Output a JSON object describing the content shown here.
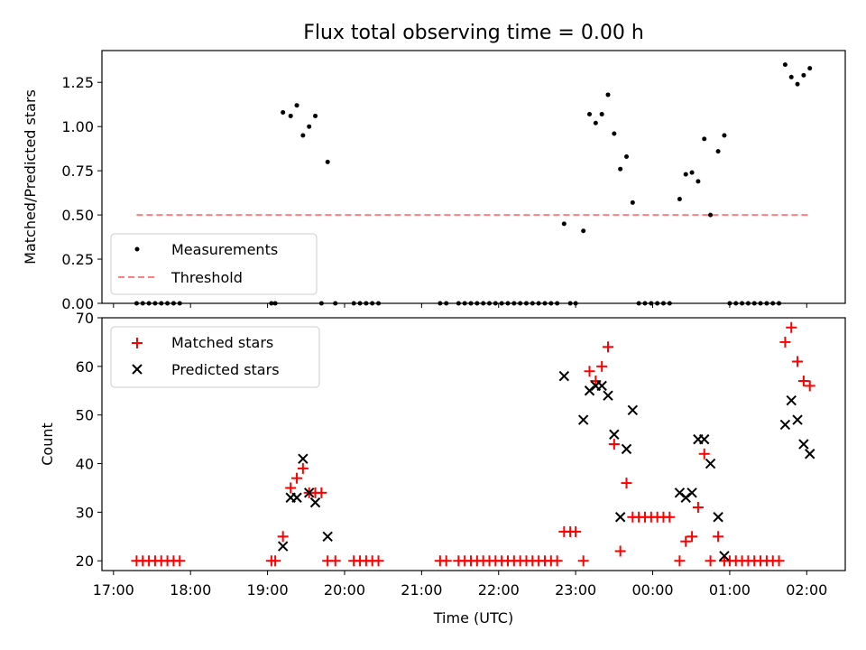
{
  "chart_data": {
    "type": "scatter",
    "title": "Flux total observing time = 0.00 h",
    "xlabel": "Time (UTC)",
    "x_unit": "hours since 17:00 UTC",
    "xlim": [
      -0.15,
      9.5
    ],
    "xticks": [
      {
        "x": 0,
        "label": "17:00"
      },
      {
        "x": 1,
        "label": "18:00"
      },
      {
        "x": 2,
        "label": "19:00"
      },
      {
        "x": 3,
        "label": "20:00"
      },
      {
        "x": 4,
        "label": "21:00"
      },
      {
        "x": 5,
        "label": "22:00"
      },
      {
        "x": 6,
        "label": "23:00"
      },
      {
        "x": 7,
        "label": "00:00"
      },
      {
        "x": 8,
        "label": "01:00"
      },
      {
        "x": 9,
        "label": "02:00"
      }
    ],
    "top": {
      "ylabel": "Matched/Predicted stars",
      "ylim": [
        0,
        1.43
      ],
      "yticks": [
        0,
        0.25,
        0.5,
        0.75,
        1.0,
        1.25
      ],
      "ytick_labels": [
        "0.00",
        "0.25",
        "0.50",
        "0.75",
        "1.00",
        "1.25"
      ],
      "legend": {
        "position": "lower-left",
        "measurements": "Measurements",
        "threshold": "Threshold"
      },
      "threshold": {
        "value": 0.5,
        "x_range": [
          0.3,
          9.05
        ],
        "color": "#ff7f7f"
      },
      "measurements": [
        [
          0.3,
          0
        ],
        [
          0.38,
          0
        ],
        [
          0.46,
          0
        ],
        [
          0.54,
          0
        ],
        [
          0.62,
          0
        ],
        [
          0.7,
          0
        ],
        [
          0.78,
          0
        ],
        [
          0.86,
          0
        ],
        [
          2.05,
          0
        ],
        [
          2.1,
          0
        ],
        [
          2.2,
          1.08
        ],
        [
          2.3,
          1.06
        ],
        [
          2.38,
          1.12
        ],
        [
          2.46,
          0.95
        ],
        [
          2.54,
          1.0
        ],
        [
          2.62,
          1.06
        ],
        [
          2.7,
          0
        ],
        [
          2.78,
          0.8
        ],
        [
          2.88,
          0
        ],
        [
          3.12,
          0
        ],
        [
          3.2,
          0
        ],
        [
          3.28,
          0
        ],
        [
          3.36,
          0
        ],
        [
          3.44,
          0
        ],
        [
          4.24,
          0
        ],
        [
          4.32,
          0
        ],
        [
          4.48,
          0
        ],
        [
          4.56,
          0
        ],
        [
          4.64,
          0
        ],
        [
          4.72,
          0
        ],
        [
          4.8,
          0
        ],
        [
          4.88,
          0
        ],
        [
          4.96,
          0
        ],
        [
          5.04,
          0
        ],
        [
          5.12,
          0
        ],
        [
          5.2,
          0
        ],
        [
          5.28,
          0
        ],
        [
          5.36,
          0
        ],
        [
          5.44,
          0
        ],
        [
          5.52,
          0
        ],
        [
          5.6,
          0
        ],
        [
          5.68,
          0
        ],
        [
          5.76,
          0
        ],
        [
          5.85,
          0.45
        ],
        [
          5.93,
          0
        ],
        [
          6.0,
          0
        ],
        [
          6.1,
          0.41
        ],
        [
          6.18,
          1.07
        ],
        [
          6.26,
          1.02
        ],
        [
          6.34,
          1.07
        ],
        [
          6.42,
          1.18
        ],
        [
          6.5,
          0.96
        ],
        [
          6.58,
          0.76
        ],
        [
          6.66,
          0.83
        ],
        [
          6.74,
          0.57
        ],
        [
          6.82,
          0
        ],
        [
          6.9,
          0
        ],
        [
          6.98,
          0
        ],
        [
          7.06,
          0
        ],
        [
          7.14,
          0
        ],
        [
          7.22,
          0
        ],
        [
          7.35,
          0.59
        ],
        [
          7.43,
          0.73
        ],
        [
          7.51,
          0.74
        ],
        [
          7.59,
          0.69
        ],
        [
          7.67,
          0.93
        ],
        [
          7.75,
          0.5
        ],
        [
          7.85,
          0.86
        ],
        [
          7.93,
          0.95
        ],
        [
          8.0,
          0
        ],
        [
          8.08,
          0
        ],
        [
          8.16,
          0
        ],
        [
          8.24,
          0
        ],
        [
          8.32,
          0
        ],
        [
          8.4,
          0
        ],
        [
          8.48,
          0
        ],
        [
          8.56,
          0
        ],
        [
          8.64,
          0
        ],
        [
          8.72,
          1.35
        ],
        [
          8.8,
          1.28
        ],
        [
          8.88,
          1.24
        ],
        [
          8.96,
          1.29
        ],
        [
          9.04,
          1.33
        ]
      ]
    },
    "bottom": {
      "ylabel": "Count",
      "ylim": [
        18,
        70
      ],
      "yticks": [
        20,
        30,
        40,
        50,
        60,
        70
      ],
      "legend": {
        "position": "top-left",
        "matched": "Matched stars",
        "predicted": "Predicted stars"
      },
      "series": [
        {
          "name": "Matched stars",
          "marker": "plus",
          "color": "#ff0000",
          "points": [
            [
              0.3,
              20
            ],
            [
              0.38,
              20
            ],
            [
              0.46,
              20
            ],
            [
              0.54,
              20
            ],
            [
              0.62,
              20
            ],
            [
              0.7,
              20
            ],
            [
              0.78,
              20
            ],
            [
              0.86,
              20
            ],
            [
              2.05,
              20
            ],
            [
              2.1,
              20
            ],
            [
              2.2,
              25
            ],
            [
              2.3,
              35
            ],
            [
              2.38,
              37
            ],
            [
              2.46,
              39
            ],
            [
              2.54,
              34
            ],
            [
              2.62,
              34
            ],
            [
              2.7,
              34
            ],
            [
              2.78,
              20
            ],
            [
              2.88,
              20
            ],
            [
              3.12,
              20
            ],
            [
              3.2,
              20
            ],
            [
              3.28,
              20
            ],
            [
              3.36,
              20
            ],
            [
              3.44,
              20
            ],
            [
              4.24,
              20
            ],
            [
              4.32,
              20
            ],
            [
              4.48,
              20
            ],
            [
              4.56,
              20
            ],
            [
              4.64,
              20
            ],
            [
              4.72,
              20
            ],
            [
              4.8,
              20
            ],
            [
              4.88,
              20
            ],
            [
              4.96,
              20
            ],
            [
              5.04,
              20
            ],
            [
              5.12,
              20
            ],
            [
              5.2,
              20
            ],
            [
              5.28,
              20
            ],
            [
              5.36,
              20
            ],
            [
              5.44,
              20
            ],
            [
              5.52,
              20
            ],
            [
              5.6,
              20
            ],
            [
              5.68,
              20
            ],
            [
              5.76,
              20
            ],
            [
              5.85,
              26
            ],
            [
              5.93,
              26
            ],
            [
              6.0,
              26
            ],
            [
              6.1,
              20
            ],
            [
              6.18,
              59
            ],
            [
              6.26,
              57
            ],
            [
              6.34,
              60
            ],
            [
              6.42,
              64
            ],
            [
              6.5,
              44
            ],
            [
              6.58,
              22
            ],
            [
              6.66,
              36
            ],
            [
              6.74,
              29
            ],
            [
              6.82,
              29
            ],
            [
              6.9,
              29
            ],
            [
              6.98,
              29
            ],
            [
              7.06,
              29
            ],
            [
              7.14,
              29
            ],
            [
              7.22,
              29
            ],
            [
              7.35,
              20
            ],
            [
              7.43,
              24
            ],
            [
              7.51,
              25
            ],
            [
              7.59,
              31
            ],
            [
              7.67,
              42
            ],
            [
              7.75,
              20
            ],
            [
              7.85,
              25
            ],
            [
              7.93,
              20
            ],
            [
              8.0,
              20
            ],
            [
              8.08,
              20
            ],
            [
              8.16,
              20
            ],
            [
              8.24,
              20
            ],
            [
              8.32,
              20
            ],
            [
              8.4,
              20
            ],
            [
              8.48,
              20
            ],
            [
              8.56,
              20
            ],
            [
              8.64,
              20
            ],
            [
              8.72,
              65
            ],
            [
              8.8,
              68
            ],
            [
              8.88,
              61
            ],
            [
              8.96,
              57
            ],
            [
              9.04,
              56
            ]
          ]
        },
        {
          "name": "Predicted stars",
          "marker": "x",
          "color": "#000000",
          "points": [
            [
              2.2,
              23
            ],
            [
              2.3,
              33
            ],
            [
              2.38,
              33
            ],
            [
              2.46,
              41
            ],
            [
              2.54,
              34
            ],
            [
              2.62,
              32
            ],
            [
              2.78,
              25
            ],
            [
              5.85,
              58
            ],
            [
              6.1,
              49
            ],
            [
              6.18,
              55
            ],
            [
              6.26,
              56
            ],
            [
              6.34,
              56
            ],
            [
              6.42,
              54
            ],
            [
              6.5,
              46
            ],
            [
              6.58,
              29
            ],
            [
              6.66,
              43
            ],
            [
              6.74,
              51
            ],
            [
              7.35,
              34
            ],
            [
              7.43,
              33
            ],
            [
              7.51,
              34
            ],
            [
              7.59,
              45
            ],
            [
              7.67,
              45
            ],
            [
              7.75,
              40
            ],
            [
              7.85,
              29
            ],
            [
              7.93,
              21
            ],
            [
              8.72,
              48
            ],
            [
              8.8,
              53
            ],
            [
              8.88,
              49
            ],
            [
              8.96,
              44
            ],
            [
              9.04,
              42
            ]
          ]
        }
      ]
    }
  }
}
